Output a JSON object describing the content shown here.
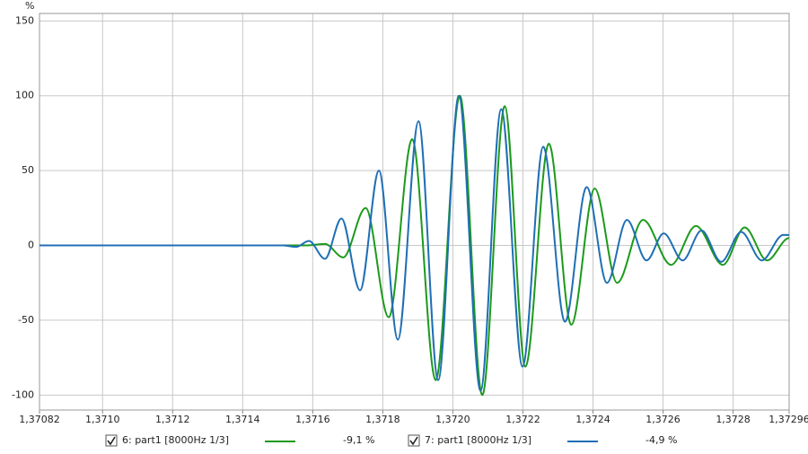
{
  "chart_data": {
    "type": "line",
    "y_label": "%",
    "xlim": [
      1.37082,
      1.37296
    ],
    "ylim": [
      -110,
      155
    ],
    "xticks": [
      {
        "value": 1.37082,
        "label": "1,37082"
      },
      {
        "value": 1.371,
        "label": "1,3710"
      },
      {
        "value": 1.3712,
        "label": "1,3712"
      },
      {
        "value": 1.3714,
        "label": "1,3714"
      },
      {
        "value": 1.3716,
        "label": "1,3716"
      },
      {
        "value": 1.3718,
        "label": "1,3718"
      },
      {
        "value": 1.372,
        "label": "1,3720"
      },
      {
        "value": 1.3722,
        "label": "1,3722"
      },
      {
        "value": 1.3724,
        "label": "1,3724"
      },
      {
        "value": 1.3726,
        "label": "1,3726"
      },
      {
        "value": 1.3728,
        "label": "1,3728"
      },
      {
        "value": 1.37296,
        "label": "1,37296"
      }
    ],
    "yticks": [
      150,
      100,
      50,
      0,
      -50,
      -100
    ],
    "grid": true,
    "series": [
      {
        "name": "6: part1 [8000Hz 1/3]",
        "color": "#1c9a1c",
        "readout": "-9,1 %",
        "x": [
          1.37082,
          1.371553,
          1.371579,
          1.371635,
          1.371687,
          1.371751,
          1.371817,
          1.371884,
          1.371951,
          1.37202,
          1.372084,
          1.372148,
          1.372207,
          1.372274,
          1.372338,
          1.372405,
          1.372469,
          1.372543,
          1.372623,
          1.372694,
          1.372771,
          1.372833,
          1.372897,
          1.37296
        ],
        "values": [
          0,
          0,
          0,
          1,
          -8,
          25,
          -48,
          71,
          -90,
          100,
          -100,
          93,
          -81,
          68,
          -53,
          38,
          -25,
          17,
          -13,
          13,
          -13,
          12,
          -10,
          5
        ]
      },
      {
        "name": "7: part1 [8000Hz 1/3]",
        "color": "#1f6fb5",
        "readout": "-4,9 %",
        "x": [
          1.37082,
          1.371515,
          1.371553,
          1.371589,
          1.371635,
          1.371682,
          1.371735,
          1.371789,
          1.371843,
          1.371902,
          1.371958,
          1.372017,
          1.372079,
          1.372138,
          1.372199,
          1.372258,
          1.37232,
          1.372382,
          1.37244,
          1.372497,
          1.372553,
          1.372602,
          1.372656,
          1.37271,
          1.372766,
          1.372823,
          1.372882,
          1.372943,
          1.37296
        ],
        "values": [
          0,
          0,
          -1,
          3,
          -9,
          18,
          -30,
          50,
          -63,
          83,
          -90,
          100,
          -97,
          91,
          -81,
          66,
          -51,
          39,
          -25,
          17,
          -10,
          8,
          -10,
          10,
          -11,
          9,
          -10,
          7,
          7
        ]
      }
    ]
  }
}
